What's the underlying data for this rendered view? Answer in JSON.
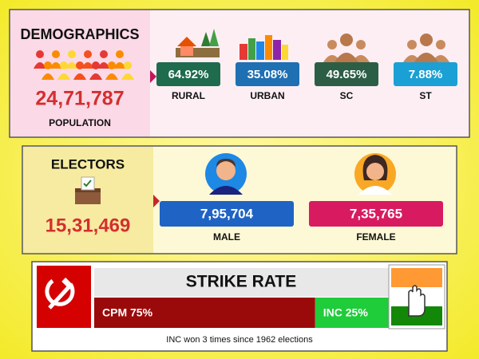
{
  "demographics": {
    "title": "DEMOGRAPHICS",
    "population": "24,71,787",
    "population_label": "POPULATION",
    "stats": [
      {
        "value": "64.92%",
        "label": "RURAL",
        "color": "#1e6b4e"
      },
      {
        "value": "35.08%",
        "label": "URBAN",
        "color": "#1f6fb3"
      },
      {
        "value": "49.65%",
        "label": "SC",
        "color": "#2c5e46"
      },
      {
        "value": "7.88%",
        "label": "ST",
        "color": "#1aa0d4"
      }
    ]
  },
  "electors": {
    "title": "ELECTORS",
    "total": "15,31,469",
    "groups": [
      {
        "value": "7,95,704",
        "label": "MALE",
        "color": "#1f63c4"
      },
      {
        "value": "7,35,765",
        "label": "FEMALE",
        "color": "#d81b60"
      }
    ]
  },
  "strike_rate": {
    "title": "STRIKE RATE",
    "segments": [
      {
        "label": "CPM 75%",
        "value": 75,
        "color": "#9b0a0a"
      },
      {
        "label": "INC 25%",
        "value": 25,
        "color": "#1fcc3a"
      }
    ],
    "note": "INC won 3 times since 1962 elections"
  }
}
